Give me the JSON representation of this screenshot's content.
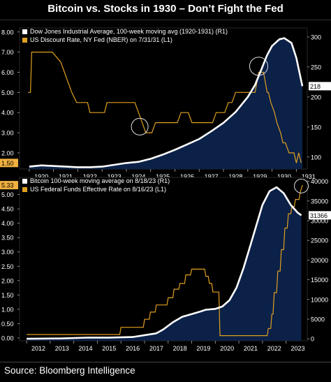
{
  "title": "Bitcoin vs. Stocks in 1930 – Don’t Fight the Fed",
  "source": "Source: Bloomberg Intelligence",
  "colors": {
    "background": "#000000",
    "panel": "#0d1a33",
    "area": "#0b2148",
    "white_line": "#ffffff",
    "orange_line": "#e0a020",
    "highlight": "#f0b040"
  },
  "chart_data": [
    {
      "type": "area",
      "legend": [
        "Dow Jones Industrial Average, 100-week moving avg (1920-1931) (R1)",
        "US Discount Rate, NY Fed (NBER) on 7/31/31 (L1)"
      ],
      "x_ticks": [
        "1920",
        "1921",
        "1922",
        "1923",
        "1924",
        "1925",
        "1926",
        "1927",
        "1928",
        "1929",
        "1930",
        "1931"
      ],
      "left_axis": {
        "ticks": [
          "2.00",
          "3.00",
          "4.00",
          "5.00",
          "6.00",
          "7.00",
          "8.00"
        ],
        "ylim": [
          1.2,
          8.2
        ],
        "last_value": "1.50"
      },
      "right_axis": {
        "ticks": [
          "100",
          "150",
          "200",
          "250",
          "300"
        ],
        "ylim": [
          80,
          315
        ],
        "last_value": "218"
      },
      "series": [
        {
          "name": "Dow Jones Industrial Average, 100-week moving avg (1920-1931) (R1)",
          "axis": "right",
          "x": [
            1920.0,
            1920.5,
            1921.0,
            1921.5,
            1922.0,
            1922.5,
            1923.0,
            1923.5,
            1924.0,
            1924.5,
            1925.0,
            1925.5,
            1926.0,
            1926.5,
            1927.0,
            1927.5,
            1928.0,
            1928.5,
            1929.0,
            1929.3,
            1929.6,
            1929.8,
            1930.0,
            1930.3,
            1930.5,
            1930.8,
            1931.0,
            1931.25
          ],
          "y": [
            84,
            86,
            85,
            84,
            83,
            83,
            84,
            87,
            90,
            92,
            97,
            104,
            112,
            121,
            130,
            143,
            157,
            175,
            200,
            220,
            250,
            270,
            285,
            296,
            298,
            290,
            265,
            218
          ]
        },
        {
          "name": "US Discount Rate, NY Fed (NBER) on 7/31/31 (L1)",
          "axis": "left",
          "x": [
            1919.95,
            1920.05,
            1920.1,
            1920.95,
            1921.3,
            1921.45,
            1921.6,
            1921.75,
            1921.95,
            1922.4,
            1922.5,
            1923.1,
            1923.2,
            1924.35,
            1924.5,
            1924.65,
            1924.8,
            1925.05,
            1925.2,
            1926.1,
            1926.25,
            1926.55,
            1926.7,
            1927.55,
            1927.7,
            1928.05,
            1928.2,
            1928.35,
            1928.5,
            1929.3,
            1929.45,
            1929.65,
            1929.8,
            1929.85,
            1929.95,
            1930.1,
            1930.2,
            1930.35,
            1930.45,
            1930.55,
            1930.7,
            1930.9,
            1931.0,
            1931.1,
            1931.2
          ],
          "y": [
            5.0,
            5.0,
            7.0,
            7.0,
            6.5,
            6.0,
            5.5,
            5.0,
            4.5,
            4.5,
            4.0,
            4.0,
            4.5,
            4.5,
            4.0,
            3.5,
            3.0,
            3.0,
            3.5,
            3.5,
            4.0,
            4.0,
            3.5,
            3.5,
            4.0,
            4.0,
            4.5,
            4.5,
            5.0,
            5.0,
            6.0,
            6.0,
            5.0,
            5.0,
            4.5,
            4.0,
            3.5,
            3.0,
            2.5,
            2.5,
            2.0,
            2.0,
            1.5,
            2.0,
            1.5
          ]
        }
      ]
    },
    {
      "type": "area",
      "legend": [
        "Bitcoin 100-week moving average on 8/18/23 (R1)",
        "US Federal Funds Effective Rate on 8/16/23 (L1)"
      ],
      "x_ticks": [
        "2012",
        "2013",
        "2014",
        "2015",
        "2016",
        "2017",
        "2018",
        "2019",
        "2020",
        "2021",
        "2022",
        "2023"
      ],
      "left_axis": {
        "ticks": [
          "0.00",
          "0.50",
          "1.00",
          "1.50",
          "2.00",
          "2.50",
          "3.00",
          "3.50",
          "4.00",
          "4.50",
          "5.00"
        ],
        "ylim": [
          -0.1,
          5.6
        ],
        "last_value": "5.33"
      },
      "right_axis": {
        "ticks": [
          "0",
          "5000",
          "10000",
          "15000",
          "20000",
          "25000",
          "30000",
          "35000",
          "40000"
        ],
        "ylim": [
          -500,
          41000
        ],
        "last_value": "31366"
      },
      "series": [
        {
          "name": "Bitcoin 100-week moving average on 8/18/23 (R1)",
          "axis": "right",
          "x": [
            2012.0,
            2013.5,
            2014.5,
            2015.5,
            2016.5,
            2017.5,
            2017.8,
            2018.2,
            2018.6,
            2019.0,
            2019.3,
            2019.6,
            2020.0,
            2020.3,
            2020.6,
            2020.9,
            2021.2,
            2021.5,
            2021.8,
            2022.0,
            2022.3,
            2022.6,
            2022.9,
            2023.2,
            2023.5,
            2023.65
          ],
          "y": [
            10,
            100,
            300,
            320,
            450,
            1400,
            2400,
            4200,
            5600,
            6300,
            6800,
            7400,
            7600,
            8200,
            9800,
            13000,
            18000,
            24000,
            30000,
            34000,
            37500,
            38500,
            37000,
            34000,
            32000,
            31366
          ]
        },
        {
          "name": "US Federal Funds Effective Rate on 8/16/23 (L1)",
          "axis": "left",
          "x": [
            2012.0,
            2015.95,
            2016.0,
            2016.95,
            2017.0,
            2017.2,
            2017.25,
            2017.45,
            2017.5,
            2017.95,
            2018.0,
            2018.2,
            2018.25,
            2018.45,
            2018.5,
            2018.7,
            2018.75,
            2018.95,
            2019.0,
            2019.55,
            2019.6,
            2019.7,
            2019.75,
            2019.85,
            2019.9,
            2020.15,
            2020.2,
            2022.2,
            2022.25,
            2022.35,
            2022.4,
            2022.45,
            2022.5,
            2022.6,
            2022.65,
            2022.75,
            2022.8,
            2022.9,
            2022.95,
            2023.05,
            2023.1,
            2023.2,
            2023.25,
            2023.35,
            2023.4,
            2023.55,
            2023.6,
            2023.7
          ],
          "y": [
            0.12,
            0.12,
            0.37,
            0.37,
            0.65,
            0.65,
            0.9,
            0.9,
            1.15,
            1.15,
            1.4,
            1.4,
            1.7,
            1.7,
            1.9,
            1.9,
            2.2,
            2.2,
            2.4,
            2.4,
            2.15,
            2.15,
            1.9,
            1.9,
            1.6,
            1.6,
            0.08,
            0.08,
            0.33,
            0.33,
            0.83,
            0.83,
            1.58,
            1.58,
            2.33,
            2.33,
            3.08,
            3.08,
            3.83,
            3.83,
            4.33,
            4.33,
            4.58,
            4.58,
            4.83,
            4.83,
            5.08,
            5.33
          ]
        }
      ]
    }
  ]
}
